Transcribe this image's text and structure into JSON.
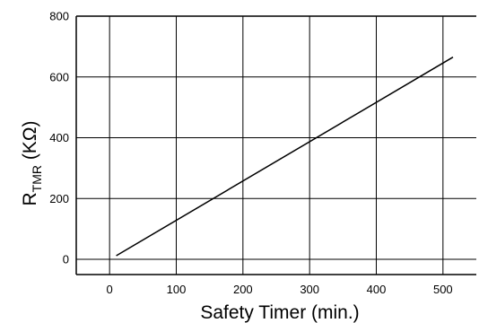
{
  "chart_data": {
    "type": "line",
    "xlabel": "Safety Timer (min.)",
    "ylabel": {
      "main": "R",
      "subscript": "TMR",
      "unit": " (KΩ)"
    },
    "xlim": [
      -50,
      550
    ],
    "ylim": [
      -50,
      800
    ],
    "xticks": [
      "0",
      "100",
      "200",
      "300",
      "400",
      "500"
    ],
    "yticks": [
      "0",
      "200",
      "400",
      "600",
      "800"
    ],
    "grid": true,
    "series": [
      {
        "x": [
          10,
          515
        ],
        "y": [
          12,
          665
        ]
      }
    ],
    "colors": {
      "line": "#000000",
      "grid": "#000000",
      "frame": "#000000"
    }
  }
}
